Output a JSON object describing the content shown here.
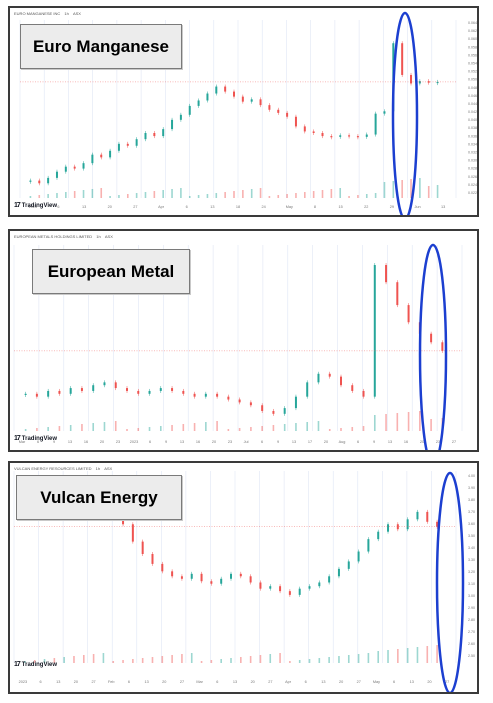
{
  "colors": {
    "up": "#26a69a",
    "down": "#ef5350",
    "grid": "#dfe6f5",
    "oval": "#1c3fd0",
    "price_line": "#ef5350"
  },
  "panels": [
    {
      "name": "euro",
      "label": "Euro Manganese",
      "header": {
        "ticker": "EURO MANGANESE INC",
        "timeframe": "1h",
        "exchange": "ASX"
      },
      "tradingview": "TradingView",
      "price_tag": "0.050",
      "y_ticks": [
        "0.064",
        "0.062",
        "0.060",
        "0.058",
        "0.056",
        "0.054",
        "0.052",
        "0.050",
        "0.048",
        "0.046",
        "0.044",
        "0.042",
        "0.040",
        "0.038",
        "0.036",
        "0.034",
        "0.032",
        "0.030",
        "0.028",
        "0.026",
        "0.024",
        "0.022"
      ],
      "x_ticks": [
        "2023",
        "6",
        "13",
        "20",
        "27",
        "Apr",
        "6",
        "13",
        "18",
        "24",
        "May",
        "8",
        "15",
        "22",
        "29",
        "Jun",
        "13"
      ],
      "chart_data": {
        "type": "line",
        "series": [
          {
            "values": [
              0.0245,
              0.0238,
              0.0252,
              0.0268,
              0.0281,
              0.0276,
              0.029,
              0.0312,
              0.0305,
              0.0322,
              0.034,
              0.0335,
              0.0352,
              0.0368,
              0.036,
              0.0378,
              0.0402,
              0.0415,
              0.0438,
              0.0452,
              0.047,
              0.0488,
              0.0475,
              0.0462,
              0.0449,
              0.0455,
              0.044,
              0.0428,
              0.042,
              0.041,
              0.0385,
              0.0372,
              0.0368,
              0.036,
              0.0358,
              0.0362,
              0.036,
              0.0358,
              0.0364,
              0.0418,
              0.0424,
              0.06,
              0.0518,
              0.0496,
              0.0502,
              0.0498,
              0.05
            ]
          }
        ],
        "ylim": [
          0.02,
          0.066
        ]
      }
    },
    {
      "name": "european-metal",
      "label": "European Metal",
      "header": {
        "ticker": "EUROPEAN METALS HOLDINGS LIMITED",
        "timeframe": "1h",
        "exchange": "ASX"
      },
      "tradingview": "TradingView",
      "price_tag": "",
      "y_ticks": [],
      "x_ticks": [
        "Mar",
        "6",
        "9",
        "13",
        "16",
        "20",
        "23",
        "2023",
        "6",
        "9",
        "13",
        "16",
        "20",
        "23",
        "Jul",
        "6",
        "9",
        "13",
        "17",
        "20",
        "Aug",
        "6",
        "9",
        "13",
        "16",
        "20",
        "23",
        "27"
      ],
      "chart_data": {
        "type": "line",
        "series": [
          {
            "values": [
              0.43,
              0.42,
              0.44,
              0.43,
              0.45,
              0.44,
              0.46,
              0.47,
              0.45,
              0.44,
              0.43,
              0.44,
              0.45,
              0.44,
              0.43,
              0.42,
              0.43,
              0.42,
              0.41,
              0.4,
              0.39,
              0.37,
              0.36,
              0.38,
              0.42,
              0.47,
              0.5,
              0.49,
              0.46,
              0.44,
              0.42,
              0.88,
              0.82,
              0.74,
              0.68,
              0.64,
              0.61,
              0.58
            ]
          }
        ],
        "ylim": [
          0.3,
          0.95
        ]
      }
    },
    {
      "name": "vulcan",
      "label": "Vulcan Energy",
      "header": {
        "ticker": "VULCAN ENERGY RESOURCES LIMITED",
        "timeframe": "1h",
        "exchange": "ASX"
      },
      "tradingview": "TradingView",
      "price_tag": "",
      "y_ticks": [
        "4.00",
        "3.90",
        "3.80",
        "3.70",
        "3.60",
        "3.50",
        "3.40",
        "3.30",
        "3.20",
        "3.10",
        "3.00",
        "2.90",
        "2.80",
        "2.70",
        "2.60",
        "2.50"
      ],
      "x_ticks": [
        "2023",
        "6",
        "13",
        "20",
        "27",
        "Feb",
        "6",
        "13",
        "20",
        "27",
        "Mar",
        "6",
        "13",
        "20",
        "27",
        "Apr",
        "6",
        "13",
        "20",
        "27",
        "May",
        "6",
        "13",
        "20",
        "27"
      ],
      "chart_data": {
        "type": "line",
        "series": [
          {
            "values": [
              3.88,
              3.84,
              3.9,
              3.86,
              3.92,
              3.88,
              3.85,
              3.82,
              3.86,
              3.8,
              3.62,
              3.48,
              3.38,
              3.3,
              3.24,
              3.2,
              3.18,
              3.22,
              3.16,
              3.14,
              3.18,
              3.22,
              3.2,
              3.15,
              3.1,
              3.12,
              3.08,
              3.05,
              3.1,
              3.12,
              3.15,
              3.2,
              3.26,
              3.32,
              3.4,
              3.5,
              3.56,
              3.62,
              3.58,
              3.66,
              3.72,
              3.64,
              3.6
            ]
          }
        ],
        "ylim": [
          2.5,
          4.05
        ]
      }
    }
  ]
}
